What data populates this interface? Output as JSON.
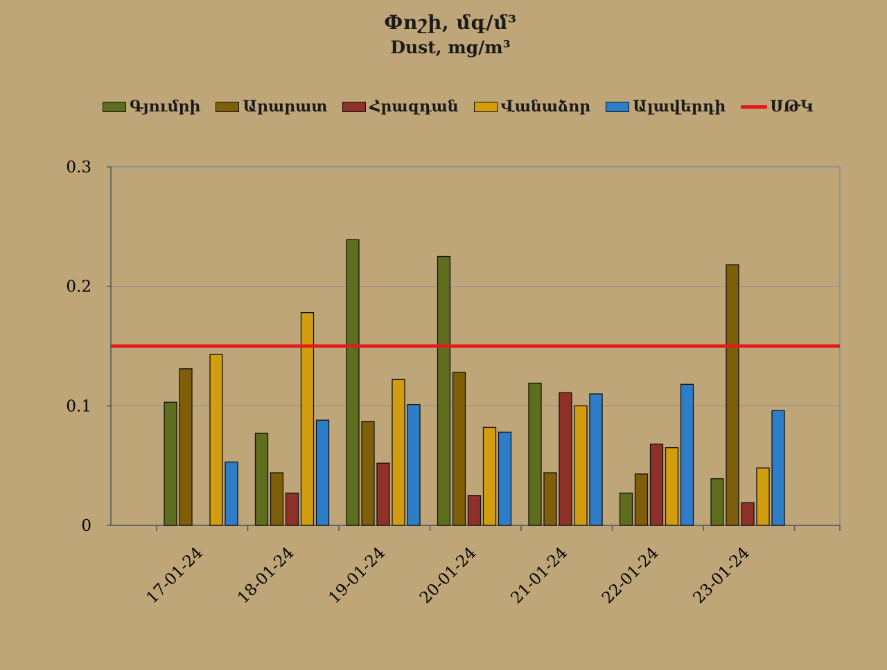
{
  "title": "Փոշի, մգ/մ³",
  "subtitle": "Dust, mg/m³",
  "chart_data": {
    "type": "bar",
    "title": "Փոշի, մգ/մ³",
    "subtitle": "Dust, mg/m³",
    "xlabel": "",
    "ylabel": "",
    "categories": [
      "17-01-24",
      "18-01-24",
      "19-01-24",
      "20-01-24",
      "21-01-24",
      "22-01-24",
      "23-01-24"
    ],
    "ylim": [
      0,
      0.3
    ],
    "yticks": [
      0,
      0.1,
      0.2,
      0.3
    ],
    "ytick_labels": [
      "0",
      "0.1",
      "0.2",
      "0.3"
    ],
    "grid": true,
    "legend_position": "top",
    "series": [
      {
        "name": "Գյումրի",
        "color": "#5e6e1e",
        "values": [
          0.103,
          0.077,
          0.239,
          0.225,
          0.119,
          0.027,
          0.039
        ]
      },
      {
        "name": "Արարատ",
        "color": "#7e5e08",
        "values": [
          0.131,
          0.044,
          0.087,
          0.128,
          0.044,
          0.043,
          0.218
        ]
      },
      {
        "name": "Հրազդան",
        "color": "#8e3128",
        "values": [
          0.0,
          0.027,
          0.052,
          0.025,
          0.111,
          0.068,
          0.019
        ]
      },
      {
        "name": "Վանաձոր",
        "color": "#d29e10",
        "values": [
          0.143,
          0.178,
          0.122,
          0.082,
          0.1,
          0.065,
          0.048
        ]
      },
      {
        "name": "Ալավերդի",
        "color": "#2d7dc8",
        "values": [
          0.053,
          0.088,
          0.101,
          0.078,
          0.11,
          0.118,
          0.096
        ]
      }
    ],
    "reference_line": {
      "name": "ՍԹԿ",
      "value": 0.15,
      "color": "#e41a1a"
    }
  }
}
